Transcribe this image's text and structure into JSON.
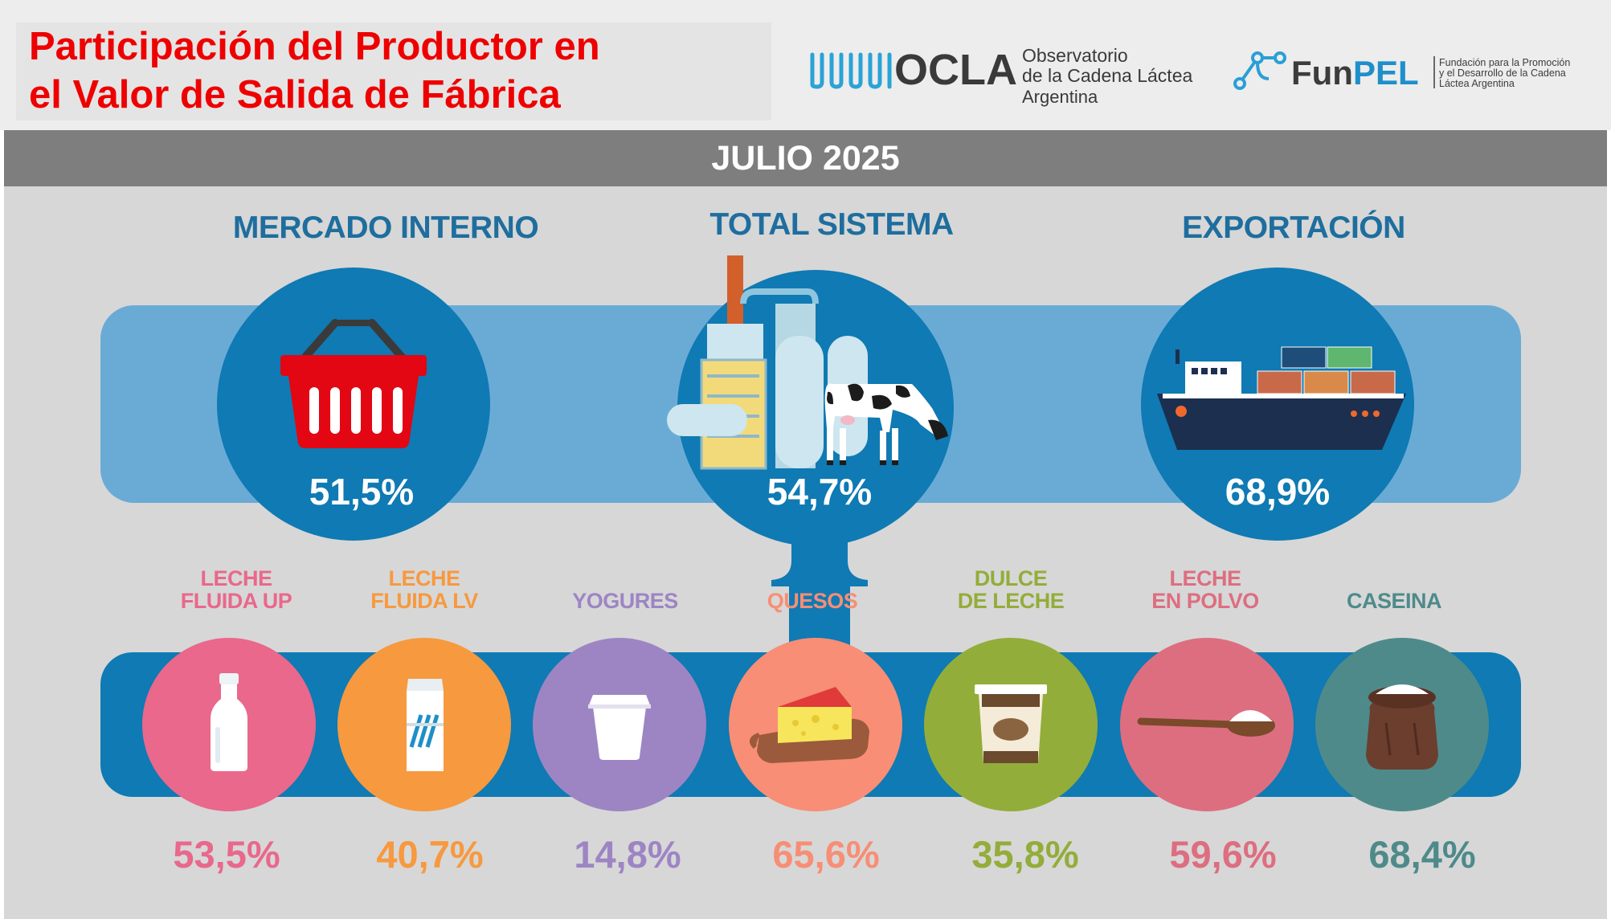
{
  "header": {
    "title_line1": "Participación del Productor en",
    "title_line2": "el Valor de Salida de Fábrica",
    "ocla": {
      "wordmark": "OCLA",
      "line1": "Observatorio",
      "line2": "de la Cadena Láctea",
      "line3": "Argentina"
    },
    "funpel": {
      "wordmark_fun": "Fun",
      "wordmark_pel": "PEL",
      "line1": "Fundación para la Promoción",
      "line2": "y el Desarrollo de la Cadena",
      "line3": "Láctea Argentina"
    }
  },
  "period": "JULIO 2025",
  "summary": [
    {
      "title": "MERCADO INTERNO",
      "value": "51,5%",
      "icon": "shopping-basket-icon"
    },
    {
      "title": "TOTAL SISTEMA",
      "value": "54,7%",
      "icon": "factory-cow-icon"
    },
    {
      "title": "EXPORTACIÓN",
      "value": "68,9%",
      "icon": "cargo-ship-icon"
    }
  ],
  "products": [
    {
      "line1": "LECHE",
      "line2": "FLUIDA UP",
      "value": "53,5%",
      "color": "#e9688b",
      "icon": "milk-bottle-icon"
    },
    {
      "line1": "LECHE",
      "line2": "FLUIDA LV",
      "value": "40,7%",
      "color": "#f7993e",
      "icon": "milk-carton-icon"
    },
    {
      "line1": "",
      "line2": "YOGURES",
      "value": "14,8%",
      "color": "#9d85c4",
      "icon": "yogurt-cup-icon"
    },
    {
      "line1": "",
      "line2": "QUESOS",
      "value": "65,6%",
      "color": "#f78e75",
      "icon": "cheese-board-icon"
    },
    {
      "line1": "DULCE",
      "line2": "DE LECHE",
      "value": "35,8%",
      "color": "#93ad3a",
      "icon": "dulce-de-leche-jar-icon"
    },
    {
      "line1": "LECHE",
      "line2": "EN POLVO",
      "value": "59,6%",
      "color": "#dd6e80",
      "icon": "powder-spoon-icon"
    },
    {
      "line1": "",
      "line2": "CASEINA",
      "value": "68,4%",
      "color": "#4f8a8a",
      "icon": "casein-sack-icon"
    }
  ],
  "colors": {
    "band_top": "#6aabd6",
    "band_bottom": "#0f7ab3",
    "circle_dark": "#0f7ab3",
    "title_blue": "#1e6e9e",
    "title_red": "#ee0000"
  }
}
